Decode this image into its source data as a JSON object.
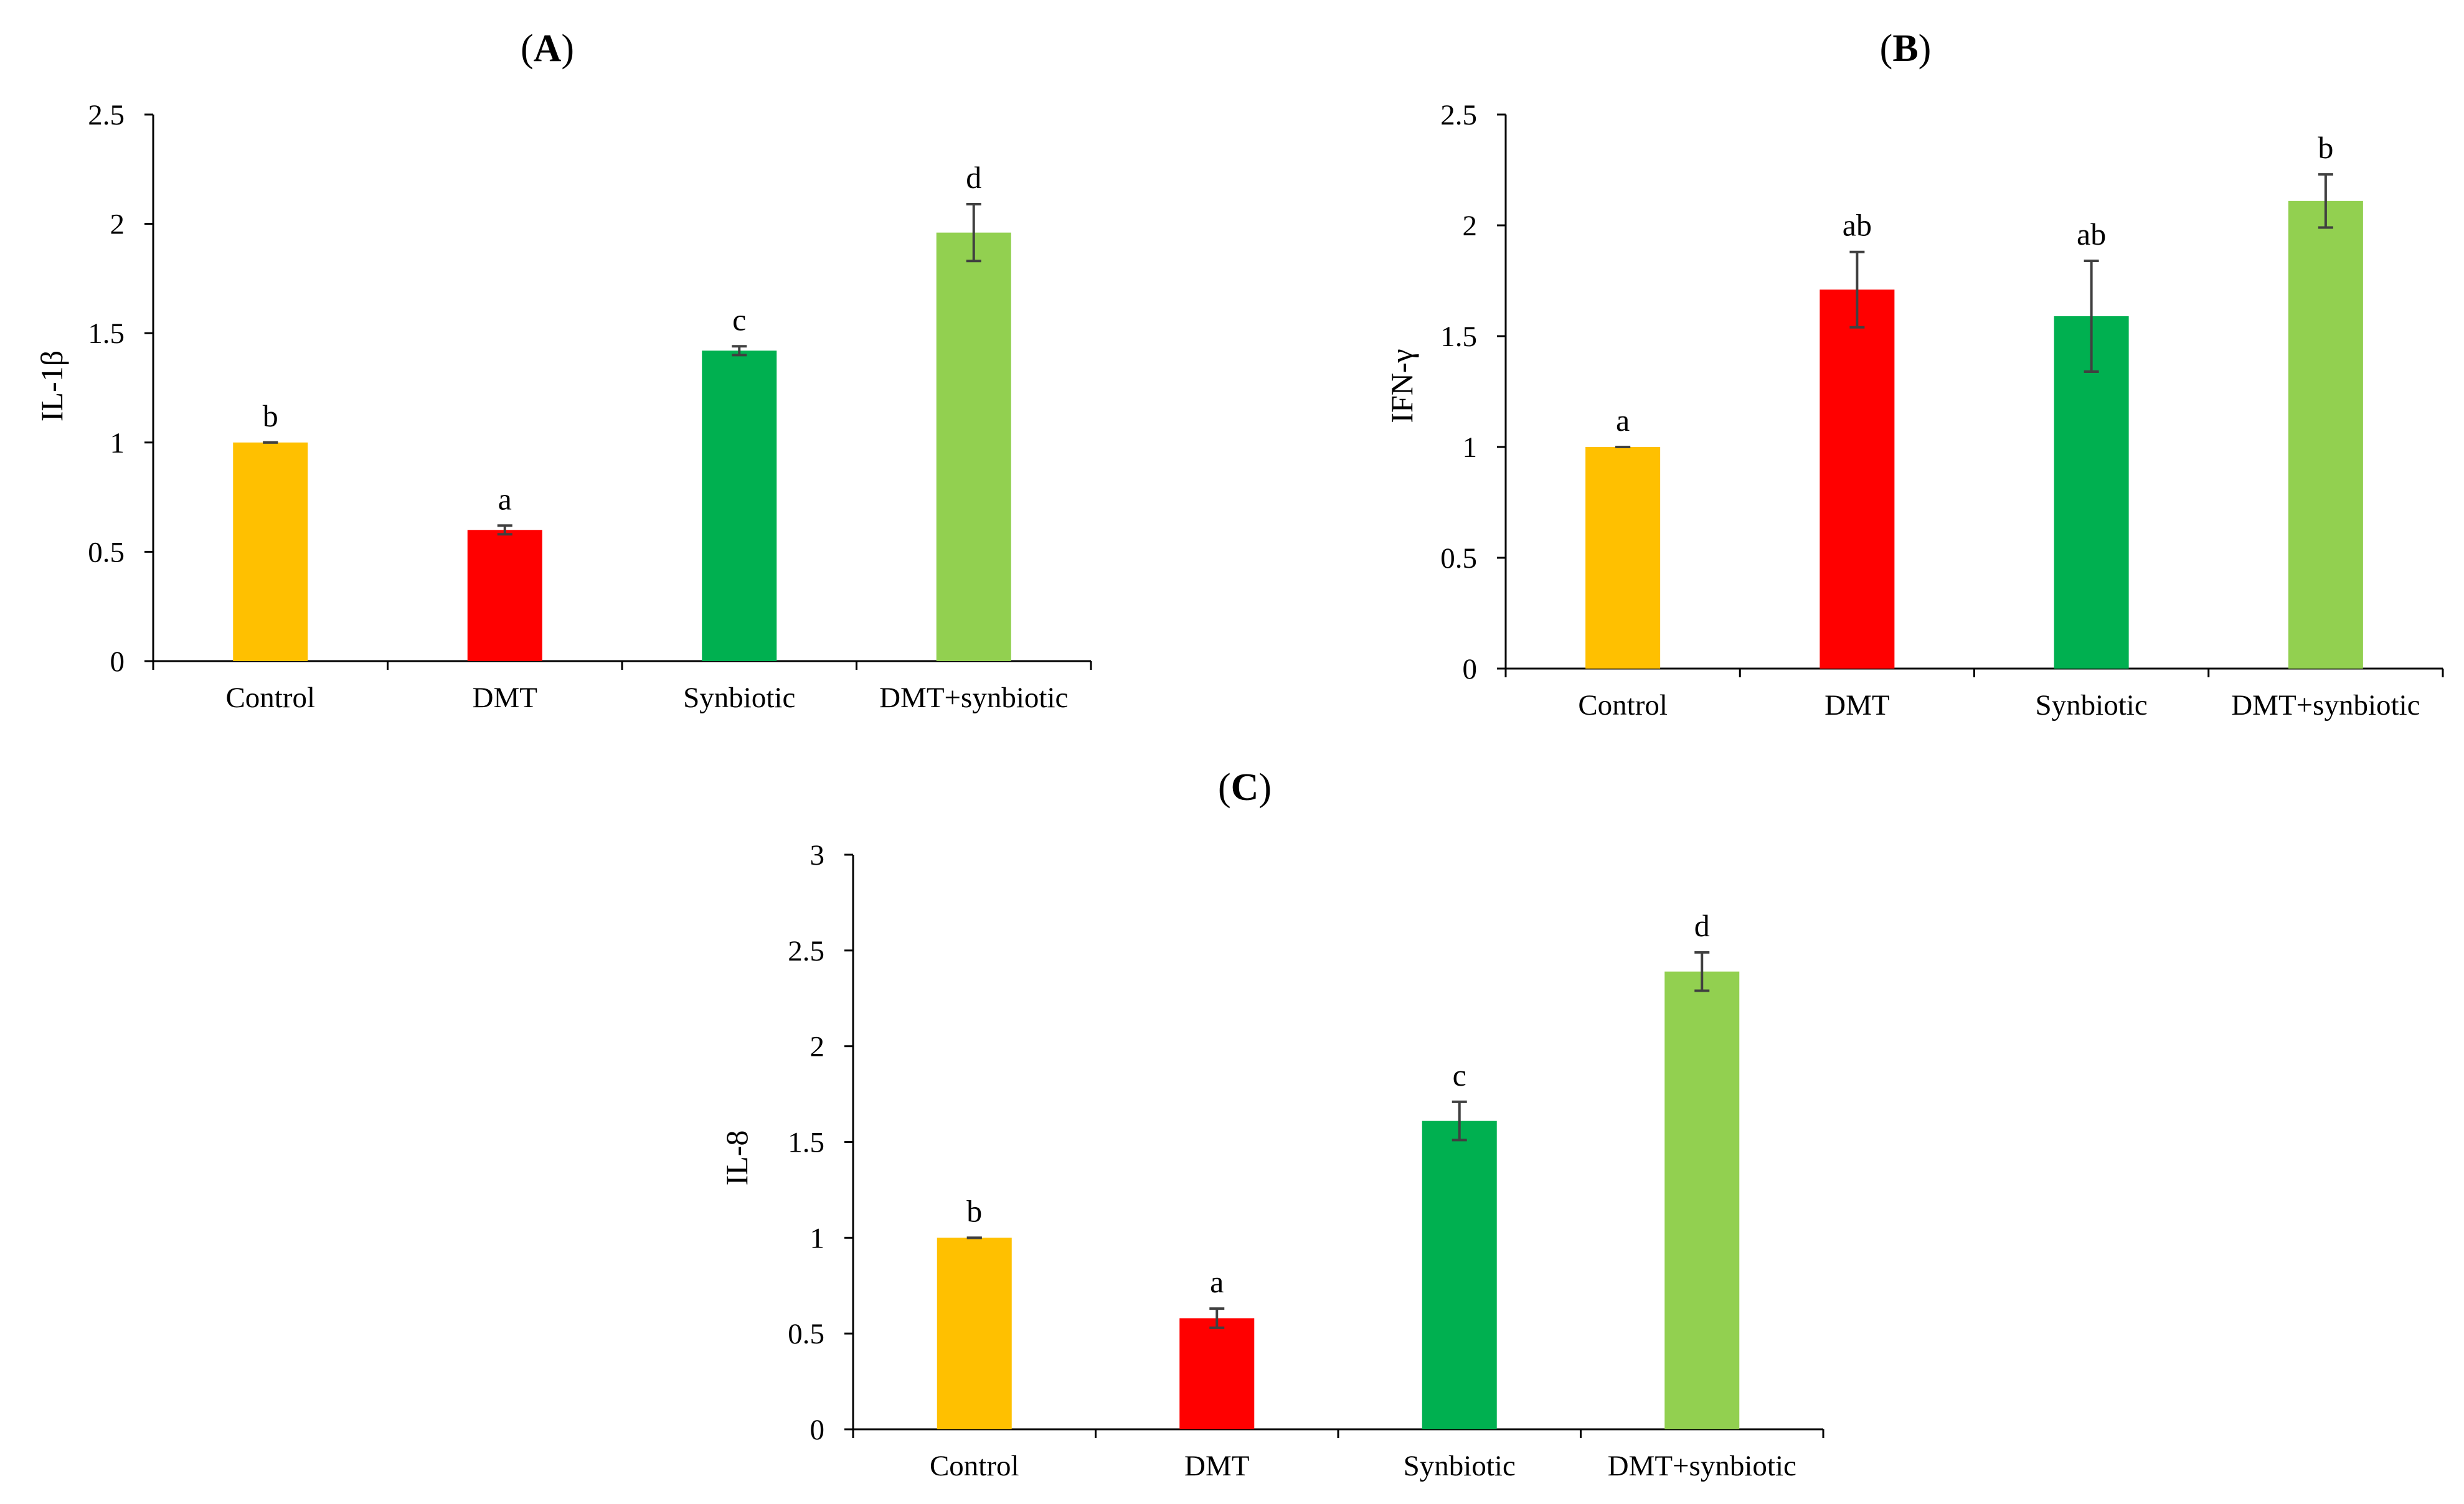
{
  "chart_data": [
    {
      "type": "bar",
      "panel": "A",
      "categories": [
        "Control",
        "DMT",
        "Synbiotic",
        "DMT+synbiotic"
      ],
      "values": [
        1.0,
        0.6,
        1.42,
        1.96
      ],
      "errors": [
        0.0,
        0.02,
        0.02,
        0.13
      ],
      "significance": [
        "b",
        "a",
        "c",
        "d"
      ],
      "colors": [
        "#FFC000",
        "#FF0000",
        "#00B050",
        "#92D050"
      ],
      "xlabel": "",
      "ylabel": "IL-1β",
      "ylim": [
        0,
        2.5
      ],
      "yticks": [
        0,
        0.5,
        1,
        1.5,
        2,
        2.5
      ],
      "ytick_labels": [
        "0",
        "0.5",
        "1",
        "1.5",
        "2",
        "2.5"
      ]
    },
    {
      "type": "bar",
      "panel": "B",
      "categories": [
        "Control",
        "DMT",
        "Synbiotic",
        "DMT+synbiotic"
      ],
      "values": [
        1.0,
        1.71,
        1.59,
        2.11
      ],
      "errors": [
        0.0,
        0.17,
        0.25,
        0.12
      ],
      "significance": [
        "a",
        "ab",
        "ab",
        "b"
      ],
      "colors": [
        "#FFC000",
        "#FF0000",
        "#00B050",
        "#92D050"
      ],
      "xlabel": "",
      "ylabel": "IFN-γ",
      "ylim": [
        0,
        2.5
      ],
      "yticks": [
        0,
        0.5,
        1,
        1.5,
        2,
        2.5
      ],
      "ytick_labels": [
        "0",
        "0.5",
        "1",
        "1.5",
        "2",
        "2.5"
      ]
    },
    {
      "type": "bar",
      "panel": "C",
      "categories": [
        "Control",
        "DMT",
        "Synbiotic",
        "DMT+synbiotic"
      ],
      "values": [
        1.0,
        0.58,
        1.61,
        2.39
      ],
      "errors": [
        0.0,
        0.05,
        0.1,
        0.1
      ],
      "significance": [
        "b",
        "a",
        "c",
        "d"
      ],
      "colors": [
        "#FFC000",
        "#FF0000",
        "#00B050",
        "#92D050"
      ],
      "xlabel": "",
      "ylabel": "IL-8",
      "ylim": [
        0,
        3
      ],
      "yticks": [
        0,
        0.5,
        1,
        1.5,
        2,
        2.5,
        3
      ],
      "ytick_labels": [
        "0",
        "0.5",
        "1",
        "1.5",
        "2",
        "2.5",
        "3"
      ]
    }
  ]
}
